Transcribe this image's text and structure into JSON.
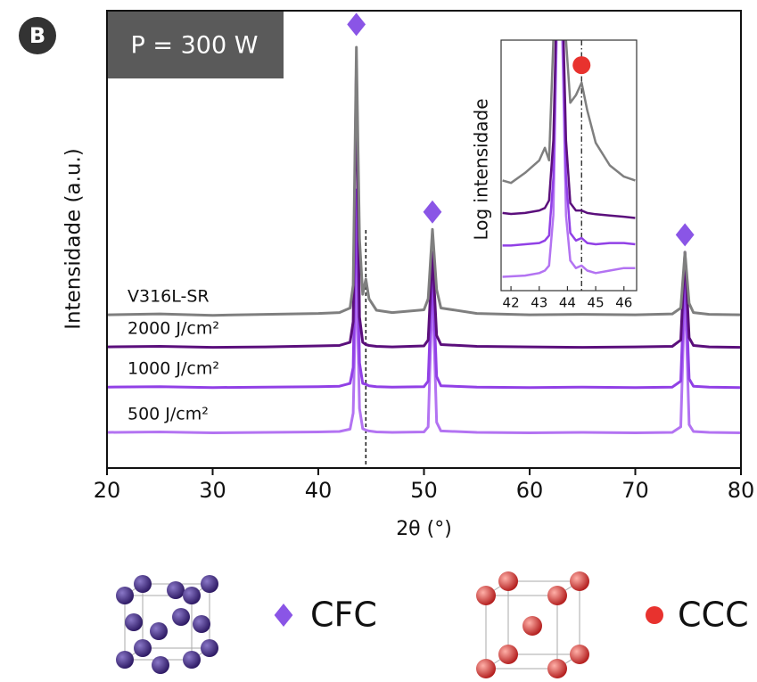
{
  "chart_data": [
    {
      "type": "line",
      "panel_label": "B",
      "annotation": "P = 300 W",
      "xlabel": "2θ (°)",
      "ylabel": "Intensidade (a.u.)",
      "xlim": [
        20,
        80
      ],
      "xticks": [
        20,
        30,
        40,
        50,
        60,
        70,
        80
      ],
      "ylim": [
        0,
        100
      ],
      "x": [
        20,
        25,
        30,
        35,
        40,
        42,
        43,
        43.3,
        43.6,
        43.9,
        44.2,
        44.5,
        44.8,
        45.5,
        47,
        50,
        50.4,
        50.8,
        51.2,
        51.6,
        55,
        60,
        65,
        70,
        73.5,
        74.3,
        74.7,
        75.1,
        75.5,
        77,
        80
      ],
      "series": [
        {
          "name": "V316L-SR",
          "color": "#7f7f7f",
          "values": [
            33.5,
            33.7,
            33.4,
            33.6,
            33.8,
            34,
            35,
            40,
            92,
            50,
            38,
            41.3,
            37,
            34.5,
            34,
            34.6,
            37,
            52.2,
            39,
            35,
            33.8,
            33.5,
            33.6,
            33.5,
            33.7,
            35,
            47.2,
            36,
            34,
            33.6,
            33.5
          ]
        },
        {
          "name": "2000 J/cm²",
          "color": "#5b0f7c",
          "values": [
            26.5,
            26.6,
            26.4,
            26.5,
            26.7,
            26.8,
            27.5,
            32,
            89,
            33,
            27.5,
            27,
            26.8,
            26.6,
            26.5,
            26.7,
            28,
            47.2,
            29,
            27,
            26.6,
            26.5,
            26.4,
            26.5,
            26.6,
            28,
            47.2,
            28.5,
            26.8,
            26.5,
            26.4
          ]
        },
        {
          "name": "1000 J/cm²",
          "color": "#9140e6",
          "values": [
            17.7,
            17.8,
            17.6,
            17.7,
            17.8,
            17.9,
            18.5,
            22,
            60.8,
            23,
            18.5,
            18.3,
            18,
            17.8,
            17.7,
            17.8,
            19,
            43.9,
            20,
            18,
            17.7,
            17.6,
            17.7,
            17.6,
            17.7,
            19,
            43.9,
            19.5,
            17.9,
            17.7,
            17.6
          ]
        },
        {
          "name": "500 J/cm²",
          "color": "#b373f2",
          "values": [
            7.8,
            7.9,
            7.7,
            7.8,
            7.9,
            8,
            8.5,
            12,
            43.9,
            13,
            8.6,
            8.3,
            8.1,
            7.9,
            7.8,
            7.9,
            9,
            40,
            10,
            8.1,
            7.8,
            7.7,
            7.8,
            7.7,
            7.8,
            9,
            40,
            9.5,
            8,
            7.8,
            7.7
          ]
        }
      ],
      "vlines": [
        44.5
      ],
      "markers": {
        "name": "CFC",
        "color": "#8a55e6",
        "x": [
          43.6,
          50.8,
          74.7
        ],
        "y": [
          97,
          56,
          51
        ]
      }
    },
    {
      "type": "line",
      "ylabel": "Log intensidade",
      "xlim": [
        41.65,
        46.45
      ],
      "xticks": [
        42,
        43,
        44,
        45,
        46
      ],
      "ylim": [
        0,
        100
      ],
      "x": [
        41.7,
        42,
        42.5,
        43,
        43.2,
        43.35,
        43.5,
        43.65,
        43.8,
        43.95,
        44.1,
        44.3,
        44.5,
        44.7,
        45,
        45.5,
        46,
        46.4
      ],
      "series": [
        {
          "color": "#7f7f7f",
          "values": [
            44,
            43,
            47,
            52,
            57,
            52,
            100,
            130,
            130,
            100,
            75,
            78,
            83,
            72,
            59,
            50,
            45.5,
            44
          ]
        },
        {
          "color": "#5b0f7c",
          "values": [
            31,
            30.6,
            31,
            32,
            33,
            36,
            60,
            130,
            130,
            60,
            35,
            32,
            32,
            31,
            30.5,
            30,
            29.5,
            29
          ]
        },
        {
          "color": "#9140e6",
          "values": [
            18,
            18,
            18.5,
            19,
            20,
            22,
            45,
            130,
            125,
            45,
            23,
            20,
            21,
            19,
            18.5,
            19,
            19,
            18.5
          ]
        },
        {
          "color": "#b373f2",
          "values": [
            5.5,
            5.7,
            6,
            7,
            8,
            10,
            30,
            120,
            110,
            30,
            12,
            9,
            10,
            8,
            7,
            8,
            9,
            9
          ]
        }
      ],
      "vlines": [
        44.5
      ],
      "markers": {
        "name": "CCC",
        "color": "#e8322e",
        "x": [
          44.5
        ],
        "y": [
          90
        ]
      }
    }
  ]
}
